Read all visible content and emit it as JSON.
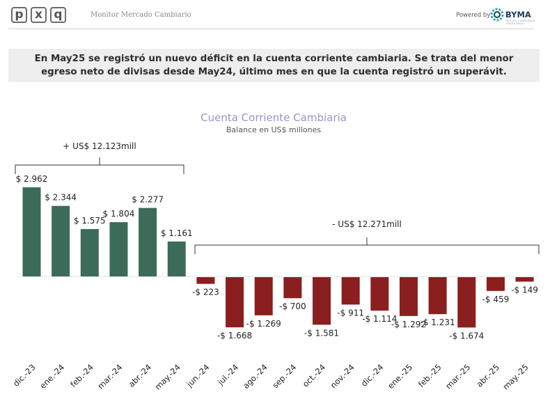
{
  "header": {
    "logo_letters": [
      "p",
      "x",
      "q"
    ],
    "app_title": "Monitor Mercado Cambiario",
    "powered_by": "Powered by",
    "sponsor": "BYMA",
    "sponsor_sub": "BOLSAS Y MERCADOS ARGENTINOS"
  },
  "headline": {
    "text": "En May25 se registró un nuevo déficit en la cuenta corriente cambiaria. Se trata del menor egreso neto de divisas desde May24, último mes en que la cuenta registró un superávit."
  },
  "colors": {
    "positive": "#3d6b59",
    "negative": "#8b1f1f",
    "title": "#9a93c9"
  },
  "chart_data": {
    "type": "bar",
    "title": "Cuenta Corriente Cambiaria",
    "subtitle": "Balance en US$ millones",
    "categories": [
      "dic.-23",
      "ene.-24",
      "feb.-24",
      "mar.-24",
      "abr.-24",
      "may.-24",
      "jun.-24",
      "jul.-24",
      "ago.-24",
      "sep.-24",
      "oct.-24",
      "nov.-24",
      "dic.-24",
      "ene.-25",
      "feb.-25",
      "mar.-25",
      "abr.-25",
      "may.-25"
    ],
    "values": [
      2962,
      2344,
      1575,
      1804,
      2277,
      1161,
      -223,
      -1668,
      -1269,
      -700,
      -1581,
      -911,
      -1114,
      -1292,
      -1231,
      -1674,
      -459,
      -149
    ],
    "labels": [
      "$ 2.962",
      "$ 2.344",
      "$ 1.575",
      "$ 1.804",
      "$ 2.277",
      "$ 1.161",
      "-$ 223",
      "-$ 1.668",
      "-$ 1.269",
      "-$ 700",
      "-$ 1.581",
      "-$ 911",
      "-$ 1.114",
      "-$ 1.292",
      "-$ 1.231",
      "-$ 1.674",
      "-$ 459",
      "-$ 149"
    ],
    "annotations": [
      {
        "text": "+ US$ 12.123mill",
        "from": 0,
        "to": 5
      },
      {
        "text": "- US$ 12.271mill",
        "from": 6,
        "to": 17
      }
    ],
    "ylim": [
      -1750,
      3100
    ]
  }
}
